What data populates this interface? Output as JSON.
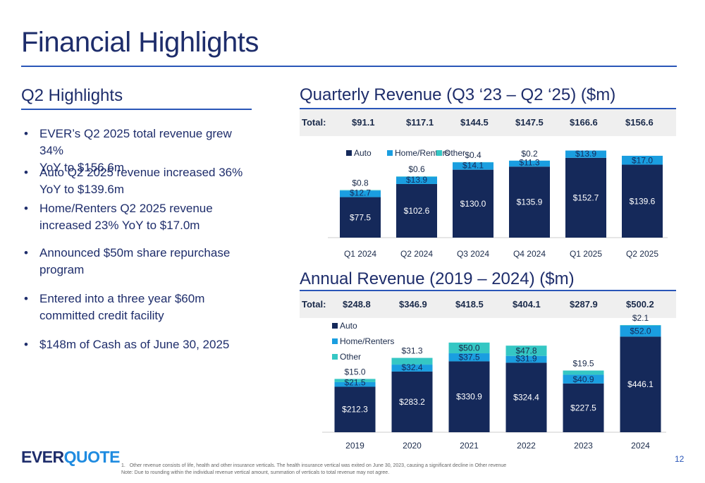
{
  "page": {
    "title": "Financial Highlights",
    "page_number": "12",
    "logo": {
      "part1": "EVER",
      "part2": "QUOTE"
    }
  },
  "highlights": {
    "title": "Q2 Highlights",
    "bullets": [
      {
        "lines": [
          "EVER’s Q2 2025 total revenue grew 34%",
          "YoY to $156.6m"
        ]
      },
      {
        "lines": [
          "Auto Q2 2025 revenue increased 36%",
          "YoY  to $139.6m"
        ]
      },
      {
        "lines": [
          "Home/Renters Q2 2025 revenue",
          "increased 23% YoY to $17.0m"
        ]
      },
      {
        "lines": [
          "Announced $50m share repurchase",
          "program"
        ]
      },
      {
        "lines": [
          "Entered into a three year $60m",
          "committed credit facility"
        ]
      },
      {
        "lines": [
          "$148m of Cash as of June 30, 2025"
        ]
      }
    ]
  },
  "quarterly": {
    "title": "Quarterly Revenue (Q3 ‘23 – Q2 ‘25) ($m)",
    "total_label": "Total:",
    "totals": [
      "$91.1",
      "$117.1",
      "$144.5",
      "$147.5",
      "$166.6",
      "$156.6"
    ]
  },
  "annual": {
    "title": "Annual Revenue (2019 – 2024) ($m)",
    "total_label": "Total:",
    "totals": [
      "$248.8",
      "$346.9",
      "$418.5",
      "$404.1",
      "$287.9",
      "$500.2"
    ]
  },
  "colors": {
    "auto": "#15295a",
    "home": "#1a9ee0",
    "other": "#35c7c4",
    "accent": "#2a56b8"
  },
  "footnotes": {
    "note1_marker": "1.",
    "note1": "Other revenue consists of life, health and other insurance verticals. The health insurance vertical was exited on June 30, 2023, causing a significant decline in Other revenue",
    "note2": "Note: Due to rounding within the individual revenue vertical amount, summation of verticals to total revenue may not agree."
  },
  "chart_data": [
    {
      "type": "bar",
      "stacked": true,
      "name": "quarterly",
      "categories": [
        "Q1 2024",
        "Q2 2024",
        "Q3 2024",
        "Q4 2024",
        "Q1 2025",
        "Q2 2025"
      ],
      "legend": [
        "Auto",
        "Home/Renters",
        "Other"
      ],
      "legend_position": "top-left",
      "series": [
        {
          "name": "Auto",
          "values": [
            77.5,
            102.6,
            130.0,
            135.9,
            152.7,
            139.6
          ],
          "labels": [
            "$77.5",
            "$102.6",
            "$130.0",
            "$135.9",
            "$152.7",
            "$139.6"
          ]
        },
        {
          "name": "Home/Renters",
          "values": [
            12.7,
            13.9,
            14.1,
            11.3,
            13.9,
            17.0
          ],
          "labels": [
            "$12.7",
            "$13.9",
            "$14.1",
            "$11.3",
            "$13.9",
            "$17.0"
          ]
        },
        {
          "name": "Other",
          "values": [
            0.8,
            0.6,
            0.4,
            0.2,
            0,
            0
          ],
          "labels": [
            "$0.8",
            "$0.6",
            "$0.4",
            "$0.2",
            "",
            ""
          ]
        }
      ],
      "ylim": [
        0,
        170
      ],
      "grid": false
    },
    {
      "type": "bar",
      "stacked": true,
      "name": "annual",
      "categories": [
        "2019",
        "2020",
        "2021",
        "2022",
        "2023",
        "2024"
      ],
      "legend": [
        "Auto",
        "Home/Renters",
        "Other"
      ],
      "legend_position": "top-left",
      "series": [
        {
          "name": "Auto",
          "values": [
            212.3,
            283.2,
            330.9,
            324.4,
            227.5,
            446.1
          ],
          "labels": [
            "$212.3",
            "$283.2",
            "$330.9",
            "$324.4",
            "$227.5",
            "$446.1"
          ]
        },
        {
          "name": "Home/Renters",
          "values": [
            21.5,
            32.4,
            37.5,
            31.9,
            40.9,
            52.0
          ],
          "labels": [
            "$21.5",
            "$32.4",
            "$37.5",
            "$31.9",
            "$40.9",
            "$52.0"
          ]
        },
        {
          "name": "Other",
          "values": [
            15.0,
            31.3,
            50.0,
            47.8,
            19.5,
            2.1
          ],
          "labels": [
            "$15.0",
            "$31.3",
            "$50.0",
            "$47.8",
            "$19.5",
            "$2.1"
          ]
        }
      ],
      "ylim": [
        0,
        510
      ],
      "grid": false
    }
  ]
}
